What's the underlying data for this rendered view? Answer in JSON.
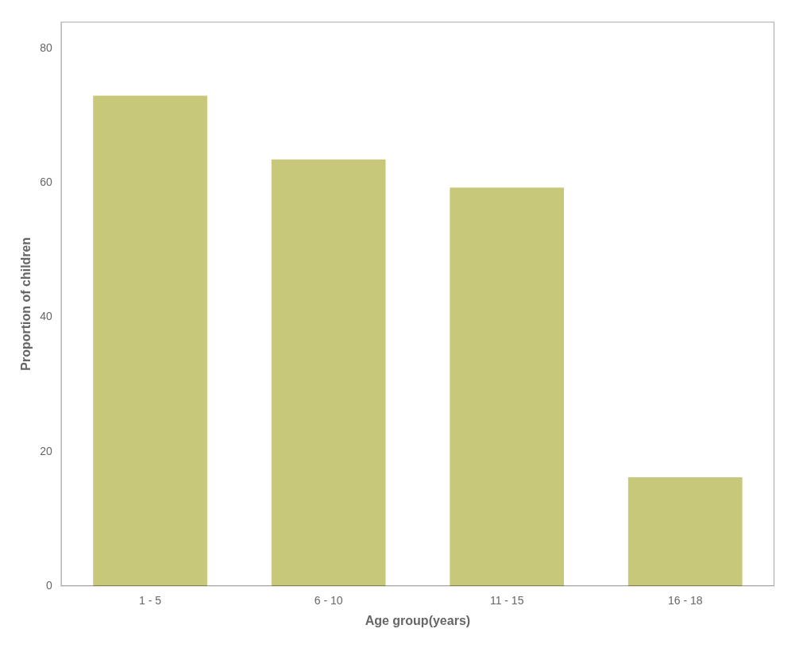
{
  "chart_data": {
    "type": "bar",
    "categories": [
      "1 - 5",
      "6 - 10",
      "11 - 15",
      "16 - 18"
    ],
    "values": [
      73.0,
      63.5,
      59.3,
      16.2
    ],
    "color": "#c8c87a",
    "xlabel": "Age group(years)",
    "ylabel": "Proportion of children",
    "ylim": [
      0,
      84
    ],
    "yticks": [
      0,
      20,
      40,
      60,
      80
    ],
    "grid": false
  }
}
